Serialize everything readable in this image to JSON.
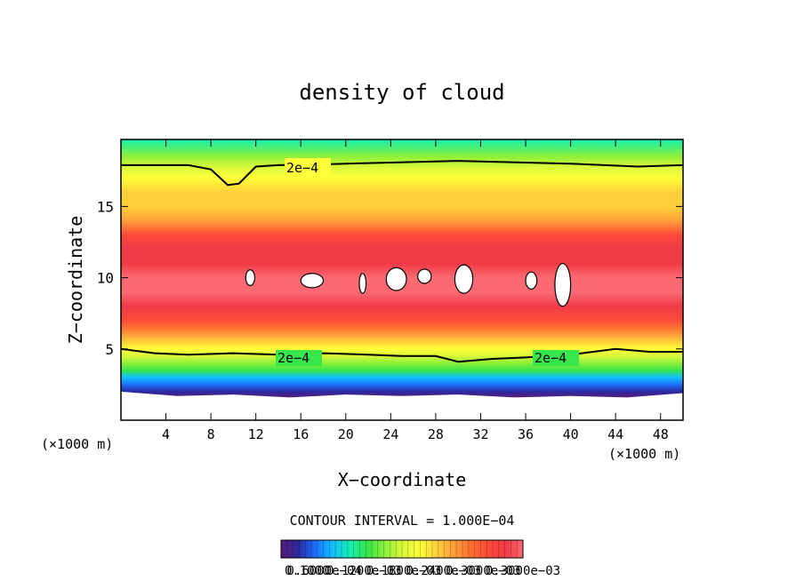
{
  "chart_data": {
    "type": "heatmap",
    "title": "density of cloud",
    "xlabel": "X−coordinate",
    "ylabel": "Z−coordinate",
    "x_unit_left": "(×1000 m)",
    "x_unit_right": "(×1000 m)",
    "xlim": [
      0,
      50
    ],
    "ylim": [
      0,
      19.7
    ],
    "x_ticks": [
      4,
      8,
      12,
      16,
      20,
      24,
      28,
      32,
      36,
      40,
      44,
      48
    ],
    "y_ticks": [
      5,
      10,
      15
    ],
    "contour_interval_text": "CONTOUR INTERVAL = 1.000E−04",
    "contour_labels": [
      "2e−4",
      "2e−4",
      "2e−4"
    ],
    "colorbar_labels": [
      "0.1000",
      "0.6000e−04",
      "0.1200e−03",
      "0.1800e−03",
      "0.2400e−03",
      "0.3000e−03",
      "0.3000e−03"
    ],
    "colorscale": [
      "#5a1a7a",
      "#2a2aa0",
      "#1d6fff",
      "#12c0ff",
      "#16f0b0",
      "#37e64a",
      "#8df03a",
      "#d8f83a",
      "#ffff3a",
      "#ffd03a",
      "#ffa03a",
      "#ff7030",
      "#ff4a3a",
      "#f03a46",
      "#fb6a72"
    ],
    "profile": {
      "z": [
        1.6,
        2.0,
        2.5,
        3.0,
        3.5,
        4.0,
        4.5,
        5.0,
        5.5,
        6.0,
        6.5,
        7.0,
        8.0,
        9.0,
        10.0,
        11.0,
        12.0,
        13.0,
        14.0,
        15.0,
        16.0,
        17.0,
        17.8,
        18.5,
        19.7
      ],
      "density": [
        0.0,
        2e-05,
        6e-05,
        0.0001,
        0.00014,
        0.00018,
        0.00021,
        0.00023,
        0.00026,
        0.00028,
        0.00032,
        0.00036,
        0.00039,
        0.0004,
        0.0004,
        0.00039,
        0.00037,
        0.00034,
        0.0003,
        0.00027,
        0.00025,
        0.00022,
        0.0002,
        0.00017,
        0.00013
      ]
    },
    "contour_2e4_upper": {
      "x": [
        0,
        6,
        8,
        9.5,
        10.5,
        12,
        14,
        20,
        30,
        40,
        46,
        50
      ],
      "z": [
        17.9,
        17.9,
        17.6,
        16.5,
        16.6,
        17.8,
        17.9,
        18.0,
        18.2,
        18.0,
        17.8,
        17.9
      ]
    },
    "contour_2e4_lower": {
      "x": [
        0,
        3,
        6,
        10,
        14,
        18,
        22,
        25,
        28,
        30,
        33,
        36,
        40,
        44,
        47,
        50
      ],
      "z": [
        5.0,
        4.7,
        4.6,
        4.7,
        4.6,
        4.7,
        4.6,
        4.5,
        4.5,
        4.1,
        4.3,
        4.4,
        4.6,
        5.0,
        4.8,
        4.8
      ]
    },
    "cloud_top_edge": {
      "x": [
        0,
        5,
        10,
        15,
        20,
        25,
        30,
        35,
        40,
        45,
        50
      ],
      "z": [
        2.0,
        1.7,
        1.8,
        1.6,
        1.8,
        1.7,
        1.8,
        1.6,
        1.7,
        1.6,
        1.9
      ]
    }
  }
}
